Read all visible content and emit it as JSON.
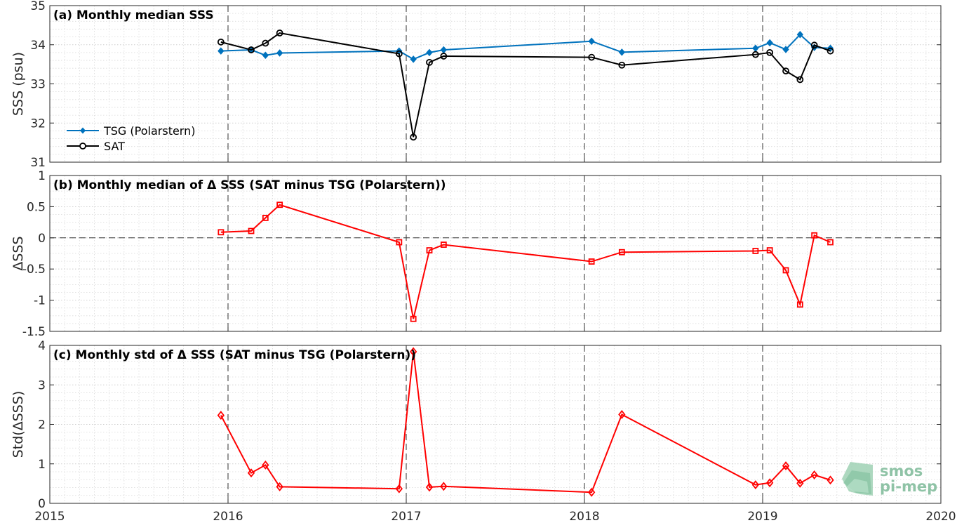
{
  "chart_data": [
    {
      "type": "line",
      "panel": "a",
      "title": "(a) Monthly median SSS",
      "ylabel": "SSS (psu)",
      "xlim": [
        2015,
        2020
      ],
      "ylim": [
        31,
        35
      ],
      "yticks": [
        "31",
        "32",
        "33",
        "34",
        "35"
      ],
      "xticks": [
        "2015",
        "2016",
        "2017",
        "2018",
        "2019",
        "2020"
      ],
      "grid": true,
      "legend_position": "lower-left",
      "series": [
        {
          "name": "TSG (Polarstern)",
          "color": "#0072bd",
          "marker": "filled-diamond",
          "x": [
            2015.96,
            2016.13,
            2016.21,
            2016.29,
            2016.96,
            2017.04,
            2017.13,
            2017.21,
            2018.04,
            2018.21,
            2018.96,
            2019.04,
            2019.13,
            2019.21,
            2019.29,
            2019.38
          ],
          "y": [
            33.84,
            33.87,
            33.73,
            33.79,
            33.84,
            33.63,
            33.8,
            33.87,
            34.09,
            33.81,
            33.91,
            34.05,
            33.88,
            34.26,
            33.93,
            33.91
          ]
        },
        {
          "name": "SAT",
          "color": "#000000",
          "marker": "open-circle",
          "x": [
            2015.96,
            2016.13,
            2016.21,
            2016.29,
            2016.96,
            2017.04,
            2017.13,
            2017.21,
            2018.04,
            2018.21,
            2018.96,
            2019.04,
            2019.13,
            2019.21,
            2019.29,
            2019.38
          ],
          "y": [
            34.07,
            33.87,
            34.04,
            34.3,
            33.77,
            31.64,
            33.55,
            33.71,
            33.68,
            33.48,
            33.75,
            33.8,
            33.33,
            33.11,
            33.99,
            33.84
          ]
        }
      ]
    },
    {
      "type": "line",
      "panel": "b",
      "title": "(b) Monthly median of Δ SSS (SAT minus TSG (Polarstern))",
      "ylabel": "ΔSSS",
      "xlim": [
        2015,
        2020
      ],
      "ylim": [
        -1.5,
        1
      ],
      "yticks": [
        "-1.5",
        "-1",
        "-0.5",
        "0",
        "0.5",
        "1"
      ],
      "xticks": [
        "2015",
        "2016",
        "2017",
        "2018",
        "2019",
        "2020"
      ],
      "grid": true,
      "zero_line": true,
      "series": [
        {
          "color": "#ff0000",
          "marker": "open-square",
          "x": [
            2015.96,
            2016.13,
            2016.21,
            2016.29,
            2016.96,
            2017.04,
            2017.13,
            2017.21,
            2018.04,
            2018.21,
            2018.96,
            2019.04,
            2019.13,
            2019.21,
            2019.29,
            2019.38
          ],
          "y": [
            0.09,
            0.11,
            0.32,
            0.53,
            -0.07,
            -1.3,
            -0.2,
            -0.11,
            -0.38,
            -0.23,
            -0.21,
            -0.2,
            -0.52,
            -1.07,
            0.04,
            -0.07
          ]
        }
      ]
    },
    {
      "type": "line",
      "panel": "c",
      "title": "(c) Monthly std of Δ SSS (SAT minus TSG (Polarstern))",
      "ylabel": "Std(ΔSSS)",
      "xlim": [
        2015,
        2020
      ],
      "ylim": [
        0,
        4
      ],
      "yticks": [
        "0",
        "1",
        "2",
        "3",
        "4"
      ],
      "xticks": [
        "2015",
        "2016",
        "2017",
        "2018",
        "2019",
        "2020"
      ],
      "grid": true,
      "series": [
        {
          "color": "#ff0000",
          "marker": "open-diamond",
          "x": [
            2015.96,
            2016.13,
            2016.21,
            2016.29,
            2016.96,
            2017.04,
            2017.13,
            2017.21,
            2018.04,
            2018.21,
            2018.96,
            2019.04,
            2019.13,
            2019.21,
            2019.29,
            2019.38
          ],
          "y": [
            2.23,
            0.77,
            0.97,
            0.42,
            0.37,
            3.84,
            0.41,
            0.43,
            0.28,
            2.25,
            0.47,
            0.52,
            0.95,
            0.51,
            0.72,
            0.59
          ]
        }
      ]
    }
  ],
  "logo": {
    "line1": "smos",
    "line2": "pi-mep",
    "color": "#8fc3a6"
  }
}
